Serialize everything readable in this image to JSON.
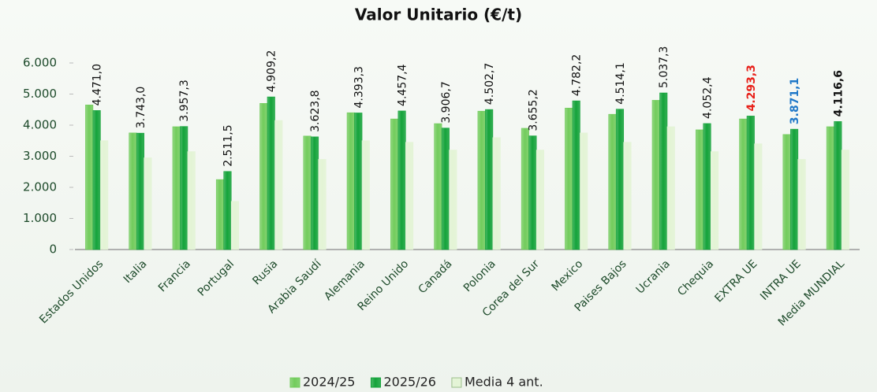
{
  "chart_data": {
    "type": "bar",
    "title": "Valor Unitario (€/t)",
    "categories": [
      "Estados Unidos",
      "Italia",
      "Francia",
      "Portugal",
      "Rusia",
      "Arabia Saudí",
      "Alemania",
      "Reino Unido",
      "Canadá",
      "Polonia",
      "Corea del Sur",
      "Mexico",
      "Paises Bajos",
      "Ucrania",
      "Chequia",
      "EXTRA UE",
      "INTRA UE",
      "Media MUNDIAL"
    ],
    "series": [
      {
        "name": "2024/25",
        "color": "#72cc5c",
        "values": [
          4650,
          3750,
          3950,
          2250,
          4700,
          3650,
          4400,
          4200,
          4050,
          4450,
          3900,
          4550,
          4350,
          4800,
          3850,
          4200,
          3700,
          3950
        ]
      },
      {
        "name": "2025/26",
        "color": "#14a33a",
        "values": [
          4471.0,
          3743.0,
          3957.3,
          2511.5,
          4909.2,
          3623.8,
          4393.3,
          4457.4,
          3906.7,
          4502.7,
          3655.2,
          4782.2,
          4514.1,
          5037.3,
          4052.4,
          4293.3,
          3871.1,
          4116.6
        ],
        "value_labels": [
          "4.471,0",
          "3.743,0",
          "3.957,3",
          "2.511,5",
          "4.909,2",
          "3.623,8",
          "4.393,3",
          "4.457,4",
          "3.906,7",
          "4.502,7",
          "3.655,2",
          "4.782,2",
          "4.514,1",
          "5.037,3",
          "4.052,4",
          "4.293,3",
          "3.871,1",
          "4.116,6"
        ],
        "value_label_colors": [
          "#111",
          "#111",
          "#111",
          "#111",
          "#111",
          "#111",
          "#111",
          "#111",
          "#111",
          "#111",
          "#111",
          "#111",
          "#111",
          "#111",
          "#111",
          "#e8211a",
          "#1f78c8",
          "#111"
        ],
        "value_label_weights": [
          "normal",
          "normal",
          "normal",
          "normal",
          "normal",
          "normal",
          "normal",
          "normal",
          "normal",
          "normal",
          "normal",
          "normal",
          "normal",
          "normal",
          "normal",
          "bold",
          "bold",
          "bold"
        ]
      },
      {
        "name": "Media 4 ant.",
        "color": "#e3f4d5",
        "values": [
          3500,
          2950,
          3150,
          1550,
          4150,
          2900,
          3500,
          3450,
          3200,
          3600,
          3200,
          3750,
          3450,
          3950,
          3150,
          3400,
          2900,
          3200
        ]
      }
    ],
    "ylim": [
      0,
      6000
    ],
    "yticks": [
      0,
      {
        "value": 1000,
        "label": "1.000"
      },
      {
        "value": 2000,
        "label": "2.000"
      },
      {
        "value": 3000,
        "label": "3.000"
      },
      {
        "value": 4000,
        "label": "4.000"
      },
      {
        "value": 5000,
        "label": "5.000"
      },
      {
        "value": 6000,
        "label": "6.000"
      }
    ],
    "grid": false,
    "legend": "bottom"
  }
}
